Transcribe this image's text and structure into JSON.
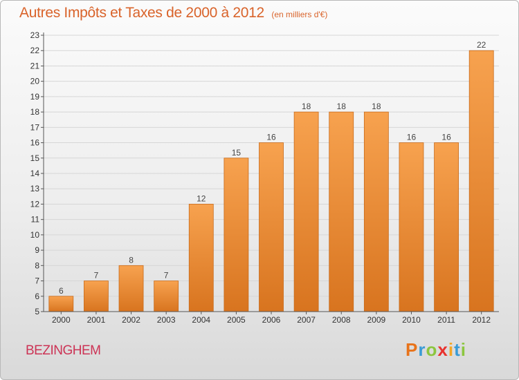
{
  "header": {
    "title": "Autres Impôts et Taxes de 2000 à 2012",
    "unit": "(en milliers d'€)"
  },
  "footer": {
    "commune": "BEZINGHEM",
    "logo_letters": [
      "P",
      "r",
      "o",
      "x",
      "i",
      "t",
      "i"
    ],
    "logo_colors": [
      "#e8731a",
      "#3a9bd5",
      "#8cc63f",
      "#e8322e",
      "#f5a623",
      "#3a9bd5",
      "#8cc63f"
    ]
  },
  "colors": {
    "bar_top": "#f7a24f",
    "bar_bottom": "#d8741f",
    "bar_edge": "#c86a1a",
    "grid": "#d6d6d6",
    "axis": "#555555"
  },
  "chart_data": {
    "type": "bar",
    "categories": [
      "2000",
      "2001",
      "2002",
      "2003",
      "2004",
      "2005",
      "2006",
      "2007",
      "2008",
      "2009",
      "2010",
      "2011",
      "2012"
    ],
    "values": [
      6,
      7,
      8,
      7,
      12,
      15,
      16,
      18,
      18,
      18,
      16,
      16,
      22
    ],
    "ylim": [
      5,
      23
    ],
    "yticks": [
      5,
      6,
      7,
      8,
      9,
      10,
      11,
      12,
      13,
      14,
      15,
      16,
      17,
      18,
      19,
      20,
      21,
      22,
      23
    ],
    "grid": true,
    "legend": "none"
  }
}
